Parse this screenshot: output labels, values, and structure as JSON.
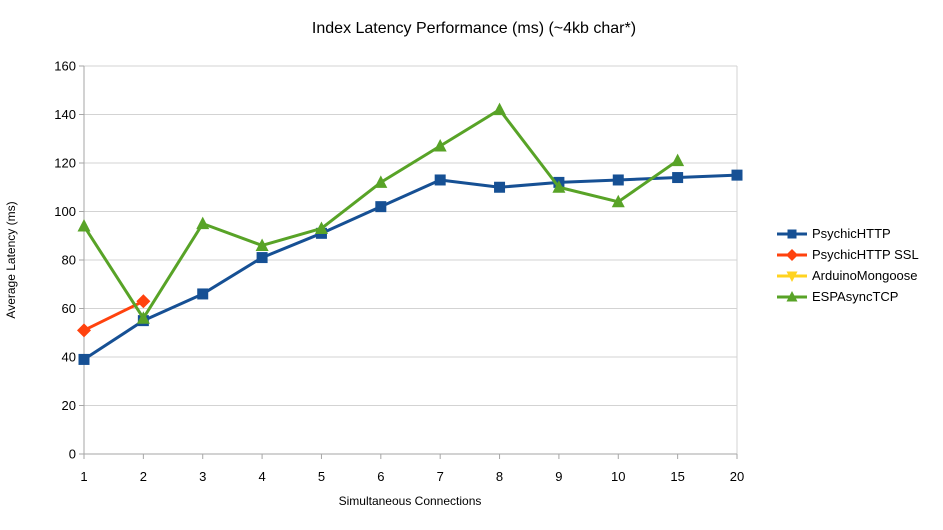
{
  "title": "Index Latency Performance (ms) (~4kb char*)",
  "chart_data": {
    "type": "line",
    "title": "Index Latency Performance (ms) (~4kb char*)",
    "xlabel": "Simultaneous Connections",
    "ylabel": "Average Latency (ms)",
    "x_categories": [
      "1",
      "2",
      "3",
      "4",
      "5",
      "6",
      "7",
      "8",
      "9",
      "10",
      "15",
      "20"
    ],
    "ylim": [
      0,
      160
    ],
    "y_ticks": [
      0,
      20,
      40,
      60,
      80,
      100,
      120,
      140,
      160
    ],
    "grid": "horizontal",
    "legend_position": "right",
    "colors": {
      "grid": "#d3d3d3",
      "axis": "#a6a6a6",
      "text": "#000000"
    },
    "series": [
      {
        "name": "PsychicHTTP",
        "color": "#165094",
        "marker": "square",
        "values": [
          39,
          55,
          66,
          81,
          91,
          102,
          113,
          110,
          112,
          113,
          114,
          115
        ]
      },
      {
        "name": "PsychicHTTP SSL",
        "color": "#ff420e",
        "marker": "diamond",
        "values": [
          51,
          63,
          null,
          null,
          null,
          null,
          null,
          null,
          null,
          null,
          null,
          null
        ]
      },
      {
        "name": "ArduinoMongoose",
        "color": "#ffd320",
        "marker": "triangle-down",
        "values": [
          null,
          null,
          null,
          null,
          null,
          null,
          null,
          null,
          null,
          null,
          null,
          null
        ]
      },
      {
        "name": "ESPAsyncTCP",
        "color": "#58a327",
        "marker": "triangle-up",
        "values": [
          94,
          56,
          95,
          86,
          93,
          112,
          127,
          142,
          110,
          104,
          121,
          null
        ]
      }
    ]
  }
}
